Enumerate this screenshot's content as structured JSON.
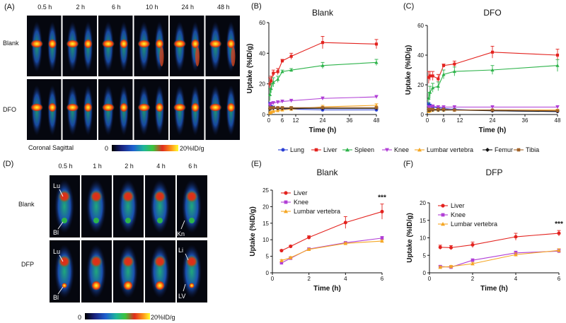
{
  "panels": {
    "A": {
      "label": "(A)",
      "times": [
        "0.5 h",
        "2 h",
        "6 h",
        "10 h",
        "24 h",
        "48 h"
      ],
      "rows": [
        "Blank",
        "DFO"
      ],
      "view_label": "Coronal Sagittal",
      "scale_min": "0",
      "scale_max": "20%ID/g"
    },
    "D": {
      "label": "(D)",
      "times": [
        "0.5 h",
        "1 h",
        "2 h",
        "4 h",
        "6 h"
      ],
      "rows": [
        "Blank",
        "DFP"
      ],
      "annotations": {
        "lu1": "Lu",
        "bl1": "Bl",
        "kn": "Kn",
        "lu2": "Lu",
        "bl2": "Bl",
        "li": "Li",
        "lv": "LV"
      },
      "scale_min": "0",
      "scale_max": "20%ID/g"
    }
  },
  "legend_bc": [
    "Lung",
    "Liver",
    "Spleen",
    "Knee",
    "Lumbar vertebra",
    "Femur",
    "Tibia"
  ],
  "colors": {
    "Lung": "#2a3fd4",
    "Liver": "#e3231f",
    "Spleen": "#2db34a",
    "Knee": "#b13fd6",
    "Lumbar vertebra": "#f5a623",
    "Femur": "#111111",
    "Tibia": "#a0632a"
  },
  "chart_data": [
    {
      "panel": "(B)",
      "type": "line",
      "title": "Blank",
      "xlabel": "Time (h)",
      "ylabel": "Uptake (%ID/g)",
      "xlim": [
        0,
        48
      ],
      "ylim": [
        0,
        60
      ],
      "xticks": [
        0,
        6,
        12,
        24,
        36,
        48
      ],
      "yticks": [
        0,
        20,
        40,
        60
      ],
      "x": [
        0.5,
        1,
        2,
        4,
        6,
        10,
        24,
        48
      ],
      "series": [
        {
          "name": "Lung",
          "values": [
            7,
            5,
            4.5,
            4,
            3.5,
            3.5,
            3,
            3
          ],
          "err": [
            1,
            1,
            1,
            0.5,
            0.5,
            0.5,
            0.5,
            0.5
          ]
        },
        {
          "name": "Liver",
          "values": [
            20,
            22,
            27,
            28,
            35,
            38,
            47,
            46
          ],
          "err": [
            4,
            3,
            2,
            2,
            1,
            2,
            4,
            3
          ]
        },
        {
          "name": "Spleen",
          "values": [
            13,
            17,
            21,
            23,
            28,
            29,
            32,
            34
          ],
          "err": [
            4,
            3,
            3,
            2,
            1,
            1,
            2,
            2
          ]
        },
        {
          "name": "Knee",
          "values": [
            6,
            7,
            7.5,
            8,
            8.5,
            9,
            10.5,
            11.5
          ],
          "err": [
            1,
            1,
            1,
            1,
            1,
            1,
            1,
            1
          ]
        },
        {
          "name": "Lumbar vertebra",
          "values": [
            1,
            1.5,
            2,
            2.5,
            3,
            3.5,
            5,
            6
          ],
          "err": [
            0.5,
            0.5,
            0.5,
            0.5,
            0.5,
            0.5,
            1,
            1
          ]
        },
        {
          "name": "Femur",
          "values": [
            3.5,
            4,
            4,
            4,
            4,
            4,
            4,
            4
          ],
          "err": [
            0.5,
            0.5,
            0.5,
            0.5,
            0.5,
            0.5,
            0.5,
            0.5
          ]
        },
        {
          "name": "Tibia",
          "values": [
            4,
            4.5,
            4.5,
            4.5,
            4.5,
            4.5,
            4.5,
            4.5
          ],
          "err": [
            0.5,
            0.5,
            0.5,
            0.5,
            0.5,
            0.5,
            0.5,
            0.5
          ]
        }
      ]
    },
    {
      "panel": "(C)",
      "type": "line",
      "title": "DFO",
      "xlabel": "Time (h)",
      "ylabel": "Uptake (%ID/g)",
      "xlim": [
        0,
        48
      ],
      "ylim": [
        0,
        60
      ],
      "xticks": [
        0,
        6,
        12,
        24,
        36,
        48
      ],
      "yticks": [
        0,
        20,
        40,
        60
      ],
      "x": [
        0.5,
        1,
        2,
        4,
        6,
        10,
        24,
        48
      ],
      "series": [
        {
          "name": "Lung",
          "values": [
            7,
            6,
            5,
            4.5,
            4,
            3.5,
            2.5,
            2
          ],
          "err": [
            1,
            1,
            1,
            0.5,
            0.5,
            0.5,
            0.5,
            0.5
          ]
        },
        {
          "name": "Liver",
          "values": [
            25,
            26,
            26,
            24,
            33,
            34,
            42,
            40
          ],
          "err": [
            4,
            3,
            3,
            3,
            1,
            2,
            4,
            4
          ]
        },
        {
          "name": "Spleen",
          "values": [
            11,
            15,
            18,
            19,
            27,
            29,
            30,
            33
          ],
          "err": [
            4,
            4,
            3,
            3,
            3,
            3,
            3,
            4
          ]
        },
        {
          "name": "Knee",
          "values": [
            5,
            5,
            5.5,
            5,
            5,
            5,
            5,
            5
          ],
          "err": [
            1,
            1,
            1,
            1,
            1,
            1,
            1,
            1
          ]
        },
        {
          "name": "Lumbar vertebra",
          "values": [
            2,
            2.5,
            3,
            3,
            3,
            3,
            3,
            3
          ],
          "err": [
            0.5,
            0.5,
            0.5,
            0.5,
            0.5,
            0.5,
            0.5,
            0.5
          ]
        },
        {
          "name": "Femur",
          "values": [
            3,
            3,
            3,
            3,
            3,
            3,
            2.5,
            2
          ],
          "err": [
            0.5,
            0.5,
            0.5,
            0.5,
            0.5,
            0.5,
            0.5,
            0.5
          ]
        },
        {
          "name": "Tibia",
          "values": [
            3.5,
            3.5,
            3.5,
            3.5,
            3.5,
            3,
            3,
            2.5
          ],
          "err": [
            0.5,
            0.5,
            0.5,
            0.5,
            0.5,
            0.5,
            0.5,
            0.5
          ]
        }
      ]
    },
    {
      "panel": "(E)",
      "type": "line",
      "title": "Blank",
      "xlabel": "Time (h)",
      "ylabel": "Uptake (%ID/g)",
      "xlim": [
        0,
        6
      ],
      "ylim": [
        0,
        25
      ],
      "xticks": [
        0,
        2,
        4,
        6
      ],
      "yticks": [
        0,
        5,
        10,
        15,
        20,
        25
      ],
      "x": [
        0.5,
        1,
        2,
        4,
        6
      ],
      "annotation": "***",
      "legend": [
        "Liver",
        "Knee",
        "Lumbar vertebra"
      ],
      "series": [
        {
          "name": "Liver",
          "values": [
            6.7,
            8.0,
            10.7,
            15.2,
            18.5
          ],
          "err": [
            0.3,
            0.3,
            0.5,
            1.8,
            2.3
          ]
        },
        {
          "name": "Knee",
          "values": [
            3.0,
            4.4,
            7.2,
            9.1,
            10.5
          ],
          "err": [
            0.2,
            0.3,
            0.3,
            0.3,
            0.5
          ]
        },
        {
          "name": "Lumbar vertebra",
          "values": [
            3.7,
            4.6,
            7.1,
            8.9,
            9.6
          ],
          "err": [
            0.3,
            0.3,
            0.3,
            0.3,
            0.3
          ]
        }
      ]
    },
    {
      "panel": "(F)",
      "type": "line",
      "title": "DFP",
      "xlabel": "Time (h)",
      "ylabel": "Uptake (%ID/g)",
      "xlim": [
        0,
        6
      ],
      "ylim": [
        0,
        20
      ],
      "xticks": [
        0,
        2,
        4,
        6
      ],
      "yticks": [
        0,
        5,
        10,
        15,
        20
      ],
      "x": [
        0.5,
        1,
        2,
        4,
        6
      ],
      "annotation": "***",
      "legend": [
        "Liver",
        "Knee",
        "Lumbar vertebra"
      ],
      "series": [
        {
          "name": "Liver",
          "values": [
            7.3,
            7.2,
            8.0,
            10.3,
            11.3
          ],
          "err": [
            0.6,
            0.6,
            0.8,
            1.0,
            0.8
          ]
        },
        {
          "name": "Knee",
          "values": [
            1.8,
            1.6,
            3.6,
            5.7,
            6.2
          ],
          "err": [
            0.3,
            0.3,
            0.4,
            0.5,
            0.5
          ]
        },
        {
          "name": "Lumbar vertebra",
          "values": [
            1.6,
            1.8,
            2.6,
            5.2,
            6.4
          ],
          "err": [
            0.3,
            0.3,
            0.4,
            0.5,
            0.5
          ]
        }
      ]
    }
  ]
}
